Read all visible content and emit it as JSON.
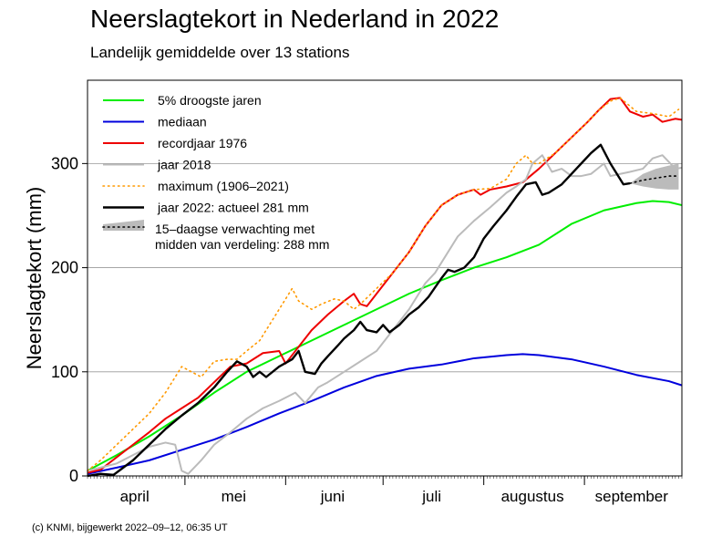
{
  "chart_data": {
    "type": "line",
    "title": "Neerslagtekort in Nederland in 2022",
    "subtitle": "Landelijk gemiddelde over 13 stations",
    "ylabel": "Neerslagtekort (mm)",
    "xlabel": "",
    "xlim": [
      1,
      184
    ],
    "ylim": [
      0,
      380
    ],
    "yticks": [
      0,
      100,
      200,
      300
    ],
    "months": [
      {
        "label": "april",
        "start": 1,
        "end": 30
      },
      {
        "label": "mei",
        "start": 31,
        "end": 61
      },
      {
        "label": "juni",
        "start": 62,
        "end": 91
      },
      {
        "label": "juli",
        "start": 92,
        "end": 122
      },
      {
        "label": "augustus",
        "start": 123,
        "end": 153
      },
      {
        "label": "september",
        "start": 154,
        "end": 183
      }
    ],
    "grid": true,
    "legend_position": "top-left",
    "series": [
      {
        "key": "top5",
        "name": "5% droogste jaren",
        "color": "#00ee00",
        "style": "solid",
        "points": [
          [
            1,
            5
          ],
          [
            10,
            20
          ],
          [
            20,
            38
          ],
          [
            30,
            58
          ],
          [
            40,
            80
          ],
          [
            50,
            100
          ],
          [
            60,
            115
          ],
          [
            70,
            130
          ],
          [
            80,
            145
          ],
          [
            90,
            160
          ],
          [
            100,
            175
          ],
          [
            110,
            188
          ],
          [
            120,
            200
          ],
          [
            130,
            210
          ],
          [
            140,
            222
          ],
          [
            150,
            242
          ],
          [
            160,
            255
          ],
          [
            170,
            262
          ],
          [
            175,
            264
          ],
          [
            180,
            263
          ],
          [
            184,
            260
          ]
        ]
      },
      {
        "key": "median",
        "name": "mediaan",
        "color": "#0000dd",
        "style": "solid",
        "points": [
          [
            1,
            2
          ],
          [
            10,
            8
          ],
          [
            20,
            15
          ],
          [
            30,
            25
          ],
          [
            40,
            35
          ],
          [
            50,
            47
          ],
          [
            60,
            60
          ],
          [
            70,
            72
          ],
          [
            80,
            85
          ],
          [
            90,
            96
          ],
          [
            100,
            103
          ],
          [
            110,
            107
          ],
          [
            120,
            113
          ],
          [
            130,
            116
          ],
          [
            135,
            117
          ],
          [
            140,
            116
          ],
          [
            150,
            112
          ],
          [
            160,
            105
          ],
          [
            170,
            97
          ],
          [
            180,
            91
          ],
          [
            184,
            87
          ]
        ]
      },
      {
        "key": "y1976",
        "name": "recordjaar 1976",
        "color": "#ee0000",
        "style": "solid",
        "points": [
          [
            1,
            3
          ],
          [
            5,
            6
          ],
          [
            10,
            18
          ],
          [
            15,
            30
          ],
          [
            20,
            42
          ],
          [
            25,
            55
          ],
          [
            30,
            65
          ],
          [
            35,
            75
          ],
          [
            40,
            90
          ],
          [
            45,
            105
          ],
          [
            50,
            108
          ],
          [
            55,
            118
          ],
          [
            60,
            120
          ],
          [
            62,
            108
          ],
          [
            65,
            120
          ],
          [
            70,
            140
          ],
          [
            75,
            155
          ],
          [
            80,
            168
          ],
          [
            83,
            175
          ],
          [
            85,
            165
          ],
          [
            87,
            163
          ],
          [
            90,
            175
          ],
          [
            95,
            195
          ],
          [
            100,
            215
          ],
          [
            105,
            240
          ],
          [
            110,
            260
          ],
          [
            115,
            270
          ],
          [
            120,
            275
          ],
          [
            122,
            270
          ],
          [
            125,
            275
          ],
          [
            130,
            278
          ],
          [
            135,
            282
          ],
          [
            140,
            295
          ],
          [
            145,
            310
          ],
          [
            150,
            325
          ],
          [
            155,
            340
          ],
          [
            158,
            350
          ],
          [
            162,
            362
          ],
          [
            165,
            363
          ],
          [
            168,
            350
          ],
          [
            172,
            345
          ],
          [
            175,
            347
          ],
          [
            178,
            340
          ],
          [
            182,
            343
          ],
          [
            184,
            342
          ]
        ]
      },
      {
        "key": "y2018",
        "name": "jaar 2018",
        "color": "#bbbbbb",
        "style": "solid",
        "points": [
          [
            1,
            5
          ],
          [
            5,
            8
          ],
          [
            10,
            12
          ],
          [
            15,
            20
          ],
          [
            20,
            28
          ],
          [
            25,
            32
          ],
          [
            28,
            30
          ],
          [
            30,
            5
          ],
          [
            32,
            2
          ],
          [
            36,
            15
          ],
          [
            40,
            30
          ],
          [
            45,
            42
          ],
          [
            50,
            55
          ],
          [
            55,
            65
          ],
          [
            60,
            72
          ],
          [
            65,
            80
          ],
          [
            68,
            70
          ],
          [
            72,
            85
          ],
          [
            75,
            90
          ],
          [
            80,
            100
          ],
          [
            85,
            110
          ],
          [
            90,
            120
          ],
          [
            95,
            140
          ],
          [
            100,
            160
          ],
          [
            105,
            185
          ],
          [
            108,
            195
          ],
          [
            112,
            215
          ],
          [
            115,
            230
          ],
          [
            120,
            245
          ],
          [
            125,
            258
          ],
          [
            130,
            272
          ],
          [
            133,
            278
          ],
          [
            136,
            285
          ],
          [
            138,
            300
          ],
          [
            141,
            308
          ],
          [
            144,
            292
          ],
          [
            147,
            295
          ],
          [
            150,
            288
          ],
          [
            153,
            288
          ],
          [
            156,
            290
          ],
          [
            160,
            300
          ],
          [
            162,
            288
          ],
          [
            165,
            290
          ],
          [
            168,
            292
          ],
          [
            172,
            295
          ],
          [
            175,
            305
          ],
          [
            178,
            308
          ],
          [
            182,
            295
          ],
          [
            184,
            296
          ]
        ]
      },
      {
        "key": "max",
        "name": "maximum (1906–2021)",
        "color": "#ff9900",
        "style": "dotted",
        "points": [
          [
            1,
            5
          ],
          [
            5,
            15
          ],
          [
            10,
            30
          ],
          [
            15,
            45
          ],
          [
            20,
            60
          ],
          [
            25,
            80
          ],
          [
            28,
            95
          ],
          [
            30,
            105
          ],
          [
            33,
            100
          ],
          [
            36,
            95
          ],
          [
            40,
            110
          ],
          [
            44,
            112
          ],
          [
            47,
            112
          ],
          [
            50,
            120
          ],
          [
            54,
            130
          ],
          [
            58,
            150
          ],
          [
            61,
            165
          ],
          [
            64,
            180
          ],
          [
            66,
            168
          ],
          [
            70,
            160
          ],
          [
            73,
            165
          ],
          [
            77,
            170
          ],
          [
            80,
            168
          ],
          [
            83,
            160
          ],
          [
            85,
            165
          ],
          [
            90,
            180
          ],
          [
            95,
            195
          ],
          [
            100,
            215
          ],
          [
            105,
            240
          ],
          [
            110,
            260
          ],
          [
            115,
            270
          ],
          [
            120,
            275
          ],
          [
            125,
            276
          ],
          [
            130,
            285
          ],
          [
            133,
            300
          ],
          [
            136,
            308
          ],
          [
            138,
            300
          ],
          [
            140,
            300
          ],
          [
            145,
            310
          ],
          [
            150,
            325
          ],
          [
            155,
            340
          ],
          [
            158,
            350
          ],
          [
            162,
            360
          ],
          [
            165,
            363
          ],
          [
            170,
            350
          ],
          [
            175,
            348
          ],
          [
            180,
            345
          ],
          [
            183,
            352
          ]
        ]
      },
      {
        "key": "y2022",
        "name": "jaar 2022: actueel 281 mm",
        "color": "#000000",
        "style": "solid",
        "bold": true,
        "points": [
          [
            1,
            0
          ],
          [
            5,
            2
          ],
          [
            9,
            1
          ],
          [
            12,
            8
          ],
          [
            15,
            15
          ],
          [
            20,
            30
          ],
          [
            25,
            45
          ],
          [
            30,
            58
          ],
          [
            35,
            70
          ],
          [
            40,
            85
          ],
          [
            44,
            100
          ],
          [
            47,
            110
          ],
          [
            50,
            105
          ],
          [
            52,
            95
          ],
          [
            54,
            100
          ],
          [
            56,
            95
          ],
          [
            60,
            105
          ],
          [
            64,
            112
          ],
          [
            66,
            120
          ],
          [
            68,
            100
          ],
          [
            71,
            98
          ],
          [
            73,
            108
          ],
          [
            75,
            115
          ],
          [
            78,
            125
          ],
          [
            80,
            132
          ],
          [
            83,
            140
          ],
          [
            85,
            148
          ],
          [
            87,
            140
          ],
          [
            90,
            138
          ],
          [
            92,
            145
          ],
          [
            94,
            138
          ],
          [
            97,
            145
          ],
          [
            100,
            155
          ],
          [
            103,
            162
          ],
          [
            106,
            172
          ],
          [
            110,
            190
          ],
          [
            112,
            198
          ],
          [
            114,
            196
          ],
          [
            117,
            200
          ],
          [
            120,
            210
          ],
          [
            123,
            228
          ],
          [
            126,
            240
          ],
          [
            130,
            255
          ],
          [
            133,
            268
          ],
          [
            136,
            280
          ],
          [
            139,
            282
          ],
          [
            141,
            270
          ],
          [
            143,
            272
          ],
          [
            147,
            280
          ],
          [
            150,
            290
          ],
          [
            153,
            300
          ],
          [
            156,
            310
          ],
          [
            159,
            318
          ],
          [
            162,
            300
          ],
          [
            165,
            285
          ],
          [
            166,
            280
          ],
          [
            168,
            281
          ]
        ]
      },
      {
        "key": "forecast",
        "name": "15-daagse verwachting met midden van verdeling: 288 mm",
        "color": "#000000",
        "style": "dotted",
        "points": [
          [
            168,
            281
          ],
          [
            172,
            284
          ],
          [
            176,
            286
          ],
          [
            180,
            288
          ],
          [
            183,
            288
          ]
        ],
        "band": [
          [
            168,
            281,
            281
          ],
          [
            172,
            278,
            290
          ],
          [
            176,
            276,
            295
          ],
          [
            180,
            275,
            298
          ],
          [
            183,
            275,
            300
          ]
        ]
      }
    ]
  },
  "legend": [
    {
      "key": "top5",
      "label": "5% droogste jaren"
    },
    {
      "key": "median",
      "label": "mediaan"
    },
    {
      "key": "y1976",
      "label": "recordjaar 1976"
    },
    {
      "key": "y2018",
      "label": "jaar 2018"
    },
    {
      "key": "max",
      "label": "maximum (1906–2021)"
    },
    {
      "key": "y2022",
      "label": "jaar 2022: actueel 281 mm"
    },
    {
      "key": "forecast",
      "label": "15–daagse verwachting met",
      "label2": "midden van verdeling: 288 mm"
    }
  ],
  "footer": "(c) KNMI, bijgewerkt 2022–09–12, 06:35 UT"
}
